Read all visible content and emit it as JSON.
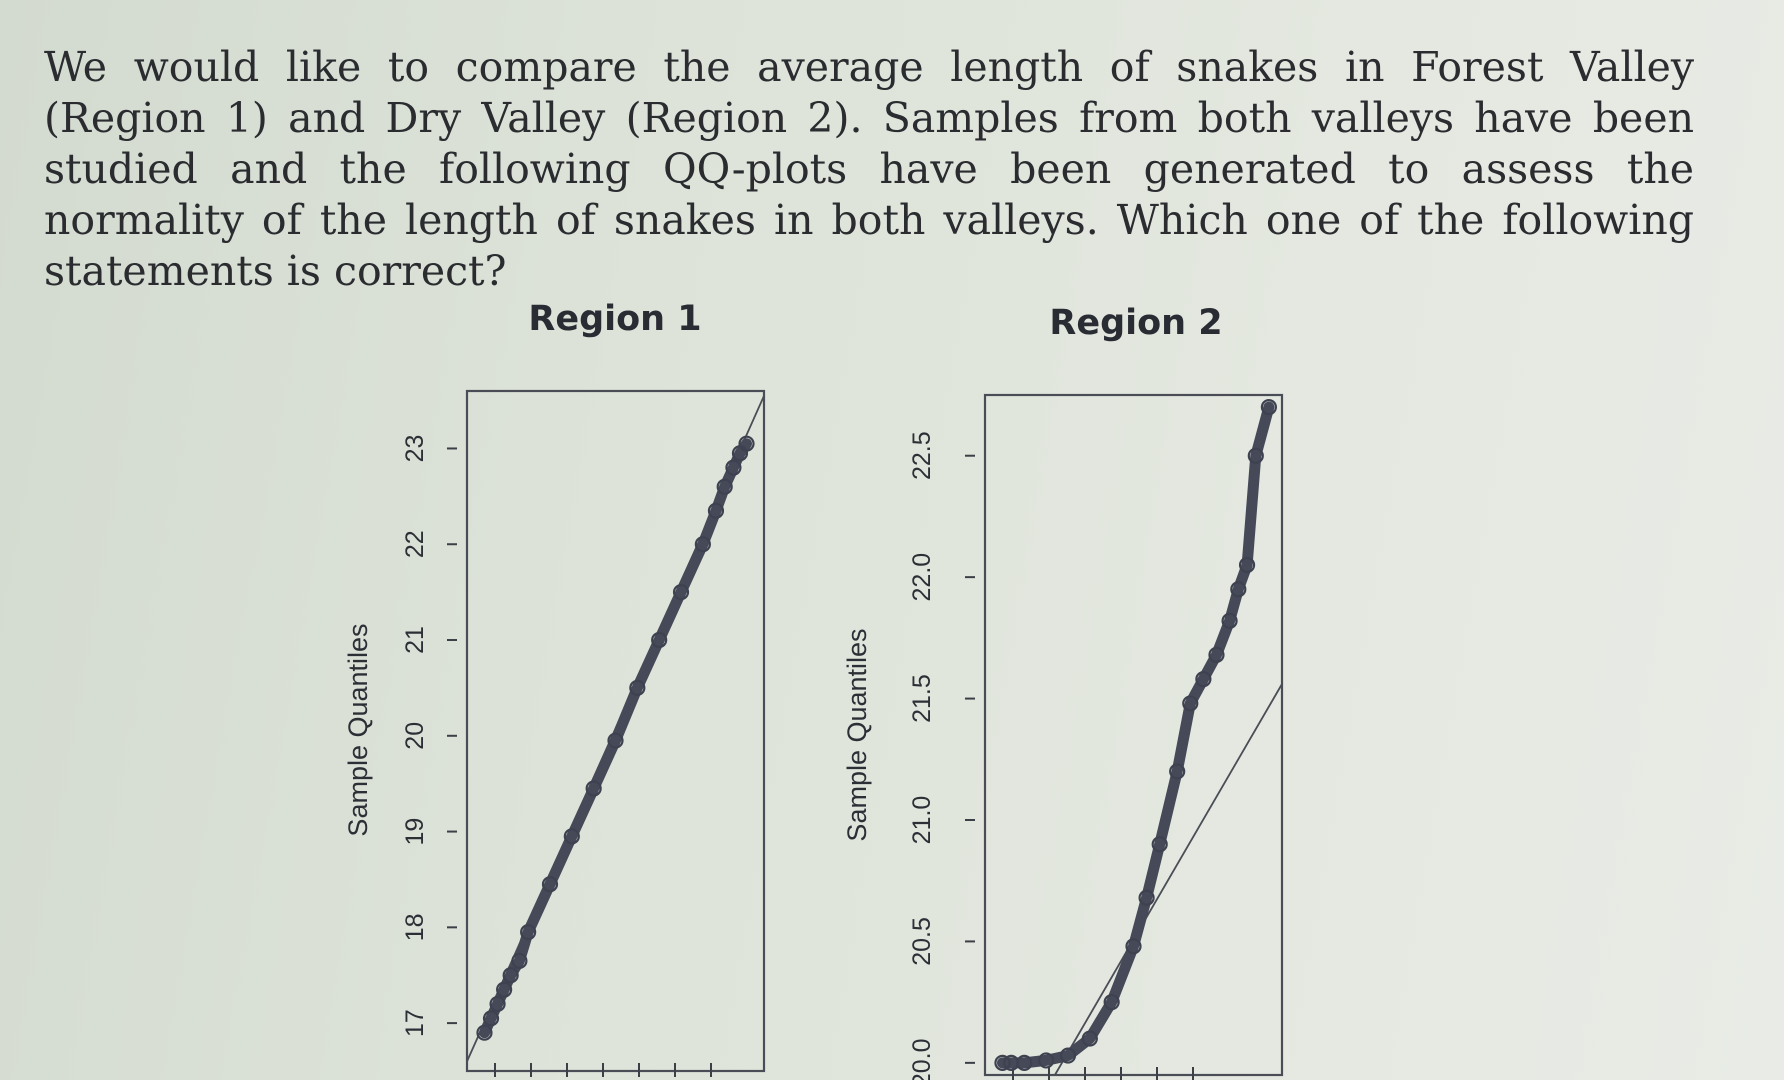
{
  "question": "We would like to compare the average length of snakes in Forest Valley (Region 1) and Dry Valley (Region 2). Samples from both valleys have been studied and the following QQ-plots have been generated to assess the normality of the length of snakes in both valleys. Which one of the following statements is correct?",
  "chart_data": [
    {
      "type": "scatter",
      "title": "Region 1",
      "ylabel": "Sample Quantiles",
      "xlabel": "",
      "y_ticks": [
        17,
        18,
        19,
        20,
        21,
        22,
        23
      ],
      "ylim": [
        16.5,
        23.6
      ],
      "xlim": [
        -3.4,
        3.4
      ],
      "reference_line": {
        "x": [
          -3.4,
          3.4
        ],
        "y": [
          16.6,
          23.55
        ]
      },
      "series": [
        {
          "x": [
            -3.0,
            -2.85,
            -2.7,
            -2.55,
            -2.4,
            -2.2,
            -2.0,
            -1.5,
            -1.0,
            -0.5,
            0.0,
            0.5,
            1.0,
            1.5,
            2.0,
            2.3,
            2.5,
            2.7,
            2.85,
            3.0
          ],
          "values": [
            16.9,
            17.05,
            17.2,
            17.35,
            17.5,
            17.65,
            17.95,
            18.45,
            18.95,
            19.45,
            19.95,
            20.5,
            21.0,
            21.5,
            22.0,
            22.35,
            22.6,
            22.8,
            22.95,
            23.05
          ]
        }
      ]
    },
    {
      "type": "scatter",
      "title": "Region 2",
      "ylabel": "Sample Quantiles",
      "xlabel": "",
      "y_ticks": [
        20.0,
        20.5,
        21.0,
        21.5,
        22.0,
        22.5
      ],
      "ylim": [
        19.95,
        22.75
      ],
      "xlim": [
        -3.4,
        3.4
      ],
      "reference_line": {
        "x": [
          -1.8,
          3.4
        ],
        "y": [
          19.95,
          21.56
        ]
      },
      "series": [
        {
          "x": [
            -3.0,
            -2.8,
            -2.5,
            -2.0,
            -1.5,
            -1.0,
            -0.5,
            0.0,
            0.3,
            0.6,
            1.0,
            1.3,
            1.6,
            1.9,
            2.2,
            2.4,
            2.6,
            2.8,
            3.1
          ],
          "values": [
            20.0,
            20.0,
            20.0,
            20.01,
            20.03,
            20.1,
            20.25,
            20.48,
            20.68,
            20.9,
            21.2,
            21.48,
            21.58,
            21.68,
            21.82,
            21.95,
            22.05,
            22.5,
            22.7
          ]
        }
      ]
    }
  ]
}
